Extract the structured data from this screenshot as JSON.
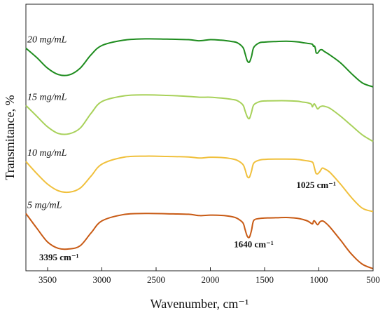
{
  "chart_data": {
    "type": "line",
    "xlabel": "Wavenumber, cm⁻¹",
    "ylabel": "Transmitance, %",
    "xlim": [
      3700,
      500
    ],
    "x_reversed": true,
    "ylim": [
      0,
      100
    ],
    "y_ticks_shown": false,
    "grid": false,
    "legend": "none",
    "x_ticks": [
      3500,
      3000,
      2500,
      2000,
      1500,
      1000,
      500
    ],
    "series": [
      {
        "name": "20 mg/mL",
        "color": "#1e8c1e",
        "x": [
          3700,
          3600,
          3500,
          3400,
          3300,
          3200,
          3100,
          3000,
          2800,
          2600,
          2400,
          2200,
          2100,
          2000,
          1900,
          1800,
          1750,
          1700,
          1680,
          1660,
          1640,
          1620,
          1600,
          1550,
          1500,
          1400,
          1300,
          1200,
          1150,
          1100,
          1060,
          1050,
          1040,
          1030,
          1025,
          1010,
          990,
          970,
          950,
          900,
          800,
          700,
          600,
          500
        ],
        "y": [
          83.5,
          80,
          76,
          73.6,
          73.5,
          76,
          81,
          84.5,
          86.5,
          87,
          86.9,
          86.7,
          86.3,
          86.7,
          86.5,
          86,
          85.5,
          83.8,
          81.5,
          78.8,
          78.3,
          80.5,
          83.8,
          85.5,
          85.8,
          86,
          86.1,
          85.9,
          85.6,
          85.3,
          85,
          84.2,
          84.3,
          83,
          81.8,
          81.7,
          82.8,
          82.9,
          82.3,
          81,
          78,
          74,
          70.5,
          69
        ]
      },
      {
        "name": "15 mg/mL",
        "color": "#a8d15a",
        "x": [
          3700,
          3600,
          3500,
          3400,
          3300,
          3200,
          3100,
          3000,
          2800,
          2600,
          2400,
          2200,
          2100,
          2000,
          1900,
          1800,
          1750,
          1700,
          1680,
          1660,
          1640,
          1620,
          1600,
          1550,
          1500,
          1400,
          1300,
          1200,
          1150,
          1100,
          1070,
          1060,
          1050,
          1040,
          1025,
          1010,
          990,
          970,
          950,
          900,
          800,
          700,
          600,
          500
        ],
        "y": [
          62,
          58,
          54,
          51.5,
          51.4,
          53.5,
          59,
          63.5,
          65.6,
          66,
          65.8,
          65.4,
          65.1,
          65.1,
          64.8,
          64.3,
          63.8,
          62.2,
          60,
          57.8,
          57.1,
          59.5,
          62.2,
          63.4,
          63.7,
          63.8,
          63.8,
          63.6,
          63.3,
          63,
          62.5,
          61.5,
          62.3,
          62.6,
          61.6,
          60.7,
          61.5,
          61.8,
          61.7,
          61,
          58,
          54.5,
          51,
          48.5
        ]
      },
      {
        "name": "10 mg/mL",
        "color": "#f0c03c",
        "x": [
          3700,
          3600,
          3500,
          3400,
          3300,
          3200,
          3100,
          3000,
          2800,
          2600,
          2400,
          2200,
          2100,
          2000,
          1900,
          1800,
          1750,
          1700,
          1680,
          1660,
          1640,
          1620,
          1600,
          1550,
          1500,
          1400,
          1300,
          1200,
          1150,
          1100,
          1060,
          1050,
          1040,
          1030,
          1025,
          1010,
          990,
          970,
          950,
          900,
          800,
          700,
          600,
          500
        ],
        "y": [
          41,
          36.5,
          32.5,
          30,
          29.5,
          31,
          35.5,
          40,
          42.6,
          43,
          42.9,
          42.7,
          42.3,
          42.6,
          42.5,
          42,
          41.4,
          39.9,
          38,
          35.4,
          35.1,
          37.5,
          40.4,
          41.5,
          41.8,
          41.9,
          41.9,
          41.8,
          41.5,
          41.2,
          40.8,
          40,
          38.5,
          37,
          36.5,
          36.4,
          37.3,
          38.5,
          38.3,
          37,
          32.5,
          27.5,
          23.5,
          22.2
        ]
      },
      {
        "name": "5 mg/mL",
        "color": "#c85a14",
        "x": [
          3700,
          3600,
          3500,
          3400,
          3300,
          3200,
          3100,
          3000,
          2800,
          2600,
          2400,
          2200,
          2100,
          2000,
          1900,
          1800,
          1750,
          1700,
          1680,
          1660,
          1640,
          1620,
          1600,
          1550,
          1500,
          1400,
          1300,
          1200,
          1150,
          1100,
          1060,
          1050,
          1040,
          1025,
          1010,
          990,
          970,
          950,
          900,
          800,
          700,
          600,
          500
        ],
        "y": [
          21.5,
          16,
          10.8,
          8.4,
          8.2,
          9.4,
          14.2,
          18.7,
          21.1,
          21.5,
          21.4,
          21.2,
          20.7,
          20.9,
          20.8,
          20.3,
          19.6,
          18,
          15.5,
          13,
          12.6,
          15.3,
          18.9,
          19.6,
          19.8,
          19.9,
          20,
          19.7,
          19.3,
          18.6,
          17.6,
          18.6,
          18.7,
          17.9,
          17.3,
          18.4,
          18.7,
          18.4,
          16.5,
          11.5,
          6.3,
          2.5,
          0.8
        ]
      }
    ],
    "annotations": [
      {
        "text": "3395 cm⁻¹",
        "x": 3395,
        "y": 4
      },
      {
        "text": "1640 cm⁻¹",
        "x": 1600,
        "y": 8.8
      },
      {
        "text": "1025 cm⁻¹",
        "x": 1025,
        "y": 31
      }
    ]
  }
}
